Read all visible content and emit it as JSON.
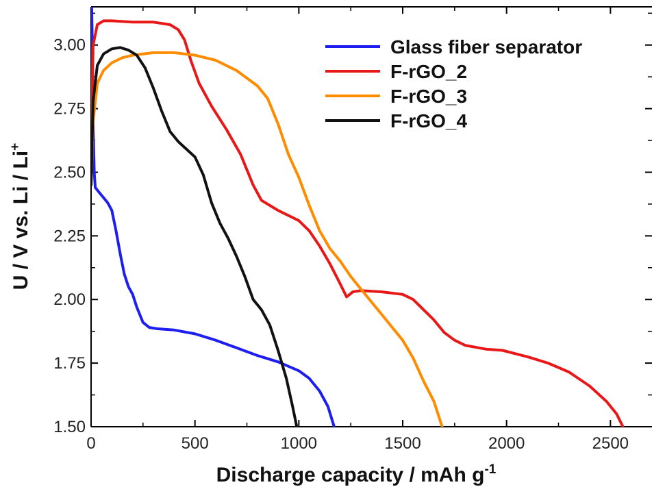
{
  "chart_data": {
    "type": "line",
    "xlabel": "Discharge capacity / mAh g",
    "xlabel_sup": "-1",
    "ylabel": "U / V vs. Li / Li",
    "ylabel_sup": "+",
    "xlim": [
      0,
      2700
    ],
    "ylim": [
      1.5,
      3.15
    ],
    "x_ticks": [
      0,
      500,
      1000,
      1500,
      2000,
      2500
    ],
    "x_tick_labels": [
      "0",
      "500",
      "1000",
      "1500",
      "2000",
      "2500"
    ],
    "y_ticks": [
      1.5,
      1.75,
      2.0,
      2.25,
      2.5,
      2.75,
      3.0
    ],
    "y_tick_labels": [
      "1.50",
      "1.75",
      "2.00",
      "2.25",
      "2.50",
      "2.75",
      "3.00"
    ],
    "grid": false,
    "legend_position": "top-right",
    "series": [
      {
        "name": "Glass fiber separator",
        "color": "#1e1ef0",
        "points": [
          [
            0,
            3.3
          ],
          [
            5,
            3.05
          ],
          [
            10,
            2.7
          ],
          [
            15,
            2.5
          ],
          [
            20,
            2.44
          ],
          [
            40,
            2.42
          ],
          [
            60,
            2.4
          ],
          [
            80,
            2.38
          ],
          [
            100,
            2.35
          ],
          [
            120,
            2.27
          ],
          [
            140,
            2.18
          ],
          [
            160,
            2.1
          ],
          [
            180,
            2.05
          ],
          [
            200,
            2.02
          ],
          [
            220,
            1.97
          ],
          [
            250,
            1.91
          ],
          [
            280,
            1.89
          ],
          [
            320,
            1.885
          ],
          [
            400,
            1.88
          ],
          [
            500,
            1.865
          ],
          [
            600,
            1.84
          ],
          [
            700,
            1.81
          ],
          [
            800,
            1.78
          ],
          [
            900,
            1.755
          ],
          [
            1000,
            1.72
          ],
          [
            1050,
            1.69
          ],
          [
            1100,
            1.64
          ],
          [
            1140,
            1.58
          ],
          [
            1170,
            1.5
          ]
        ]
      },
      {
        "name": "F-rGO_2",
        "color": "#e81818",
        "points": [
          [
            0,
            2.6
          ],
          [
            10,
            3.0
          ],
          [
            30,
            3.08
          ],
          [
            60,
            3.095
          ],
          [
            100,
            3.095
          ],
          [
            200,
            3.09
          ],
          [
            300,
            3.09
          ],
          [
            380,
            3.08
          ],
          [
            420,
            3.06
          ],
          [
            450,
            3.02
          ],
          [
            480,
            2.94
          ],
          [
            520,
            2.85
          ],
          [
            580,
            2.76
          ],
          [
            650,
            2.67
          ],
          [
            720,
            2.57
          ],
          [
            780,
            2.45
          ],
          [
            820,
            2.39
          ],
          [
            900,
            2.35
          ],
          [
            1000,
            2.31
          ],
          [
            1050,
            2.27
          ],
          [
            1100,
            2.21
          ],
          [
            1150,
            2.14
          ],
          [
            1200,
            2.06
          ],
          [
            1230,
            2.01
          ],
          [
            1260,
            2.03
          ],
          [
            1300,
            2.035
          ],
          [
            1400,
            2.03
          ],
          [
            1500,
            2.02
          ],
          [
            1550,
            2.0
          ],
          [
            1600,
            1.96
          ],
          [
            1650,
            1.92
          ],
          [
            1700,
            1.87
          ],
          [
            1750,
            1.84
          ],
          [
            1800,
            1.82
          ],
          [
            1900,
            1.805
          ],
          [
            1980,
            1.8
          ],
          [
            2100,
            1.775
          ],
          [
            2200,
            1.75
          ],
          [
            2300,
            1.715
          ],
          [
            2400,
            1.66
          ],
          [
            2480,
            1.6
          ],
          [
            2530,
            1.55
          ],
          [
            2560,
            1.5
          ]
        ]
      },
      {
        "name": "F-rGO_3",
        "color": "#ff8c00",
        "points": [
          [
            0,
            2.45
          ],
          [
            10,
            2.7
          ],
          [
            30,
            2.85
          ],
          [
            60,
            2.9
          ],
          [
            100,
            2.93
          ],
          [
            150,
            2.95
          ],
          [
            200,
            2.96
          ],
          [
            300,
            2.97
          ],
          [
            400,
            2.97
          ],
          [
            500,
            2.96
          ],
          [
            600,
            2.94
          ],
          [
            700,
            2.9
          ],
          [
            800,
            2.84
          ],
          [
            850,
            2.79
          ],
          [
            900,
            2.69
          ],
          [
            950,
            2.57
          ],
          [
            1000,
            2.48
          ],
          [
            1050,
            2.37
          ],
          [
            1100,
            2.27
          ],
          [
            1150,
            2.2
          ],
          [
            1200,
            2.15
          ],
          [
            1250,
            2.09
          ],
          [
            1300,
            2.04
          ],
          [
            1350,
            1.99
          ],
          [
            1400,
            1.94
          ],
          [
            1450,
            1.89
          ],
          [
            1500,
            1.84
          ],
          [
            1550,
            1.77
          ],
          [
            1600,
            1.68
          ],
          [
            1650,
            1.6
          ],
          [
            1690,
            1.5
          ]
        ]
      },
      {
        "name": "F-rGO_4",
        "color": "#111111",
        "points": [
          [
            0,
            2.45
          ],
          [
            10,
            2.78
          ],
          [
            30,
            2.92
          ],
          [
            60,
            2.965
          ],
          [
            100,
            2.985
          ],
          [
            140,
            2.99
          ],
          [
            180,
            2.98
          ],
          [
            220,
            2.96
          ],
          [
            260,
            2.91
          ],
          [
            300,
            2.83
          ],
          [
            340,
            2.74
          ],
          [
            380,
            2.66
          ],
          [
            420,
            2.62
          ],
          [
            460,
            2.59
          ],
          [
            500,
            2.56
          ],
          [
            540,
            2.49
          ],
          [
            580,
            2.38
          ],
          [
            620,
            2.3
          ],
          [
            660,
            2.24
          ],
          [
            700,
            2.17
          ],
          [
            740,
            2.09
          ],
          [
            780,
            2.0
          ],
          [
            820,
            1.96
          ],
          [
            860,
            1.9
          ],
          [
            900,
            1.8
          ],
          [
            940,
            1.69
          ],
          [
            970,
            1.58
          ],
          [
            990,
            1.5
          ]
        ]
      }
    ]
  }
}
